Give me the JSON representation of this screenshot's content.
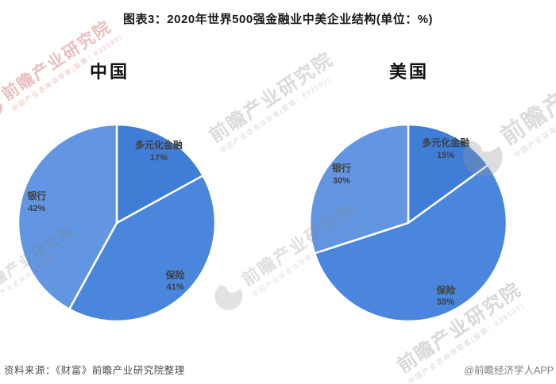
{
  "page": {
    "title": "图表3：2020年世界500强金融业中美企业结构(单位：%)"
  },
  "footer": {
    "source": "资料来源：《财富》前瞻产业研究院整理",
    "credit": "@前瞻经济学人APP"
  },
  "watermark": {
    "brand": "前瞻产业研究院",
    "tagline": "中国产业咨询领导者(股票：839599)"
  },
  "palette": {
    "diversified_finance": "#3F7DD7",
    "insurance": "#4A86DC",
    "bank": "#6296E2",
    "separator": "#FFFFFF",
    "label_text": "#3F3F3F",
    "title_text": "#1A1A1A",
    "source_text": "#4D4D4D",
    "credit_text": "#7F7F7F",
    "watermark_gray": "#8C8C8C",
    "watermark_pink": "#CD5C5C"
  },
  "chart_data": [
    {
      "type": "pie",
      "title": "中国",
      "unit": "%",
      "start_angle_deg": 0,
      "direction": "clockwise",
      "legend": "none",
      "labels_on_slices": true,
      "slices": [
        {
          "label": "多元化金融",
          "value": 17,
          "color": "#3F7DD7"
        },
        {
          "label": "保险",
          "value": 41,
          "color": "#4A86DC"
        },
        {
          "label": "银行",
          "value": 42,
          "color": "#6296E2"
        }
      ]
    },
    {
      "type": "pie",
      "title": "美国",
      "unit": "%",
      "start_angle_deg": 0,
      "direction": "clockwise",
      "legend": "none",
      "labels_on_slices": true,
      "slices": [
        {
          "label": "多元化金融",
          "value": 15,
          "color": "#3F7DD7"
        },
        {
          "label": "保险",
          "value": 55,
          "color": "#4A86DC"
        },
        {
          "label": "银行",
          "value": 30,
          "color": "#6296E2"
        }
      ]
    }
  ]
}
